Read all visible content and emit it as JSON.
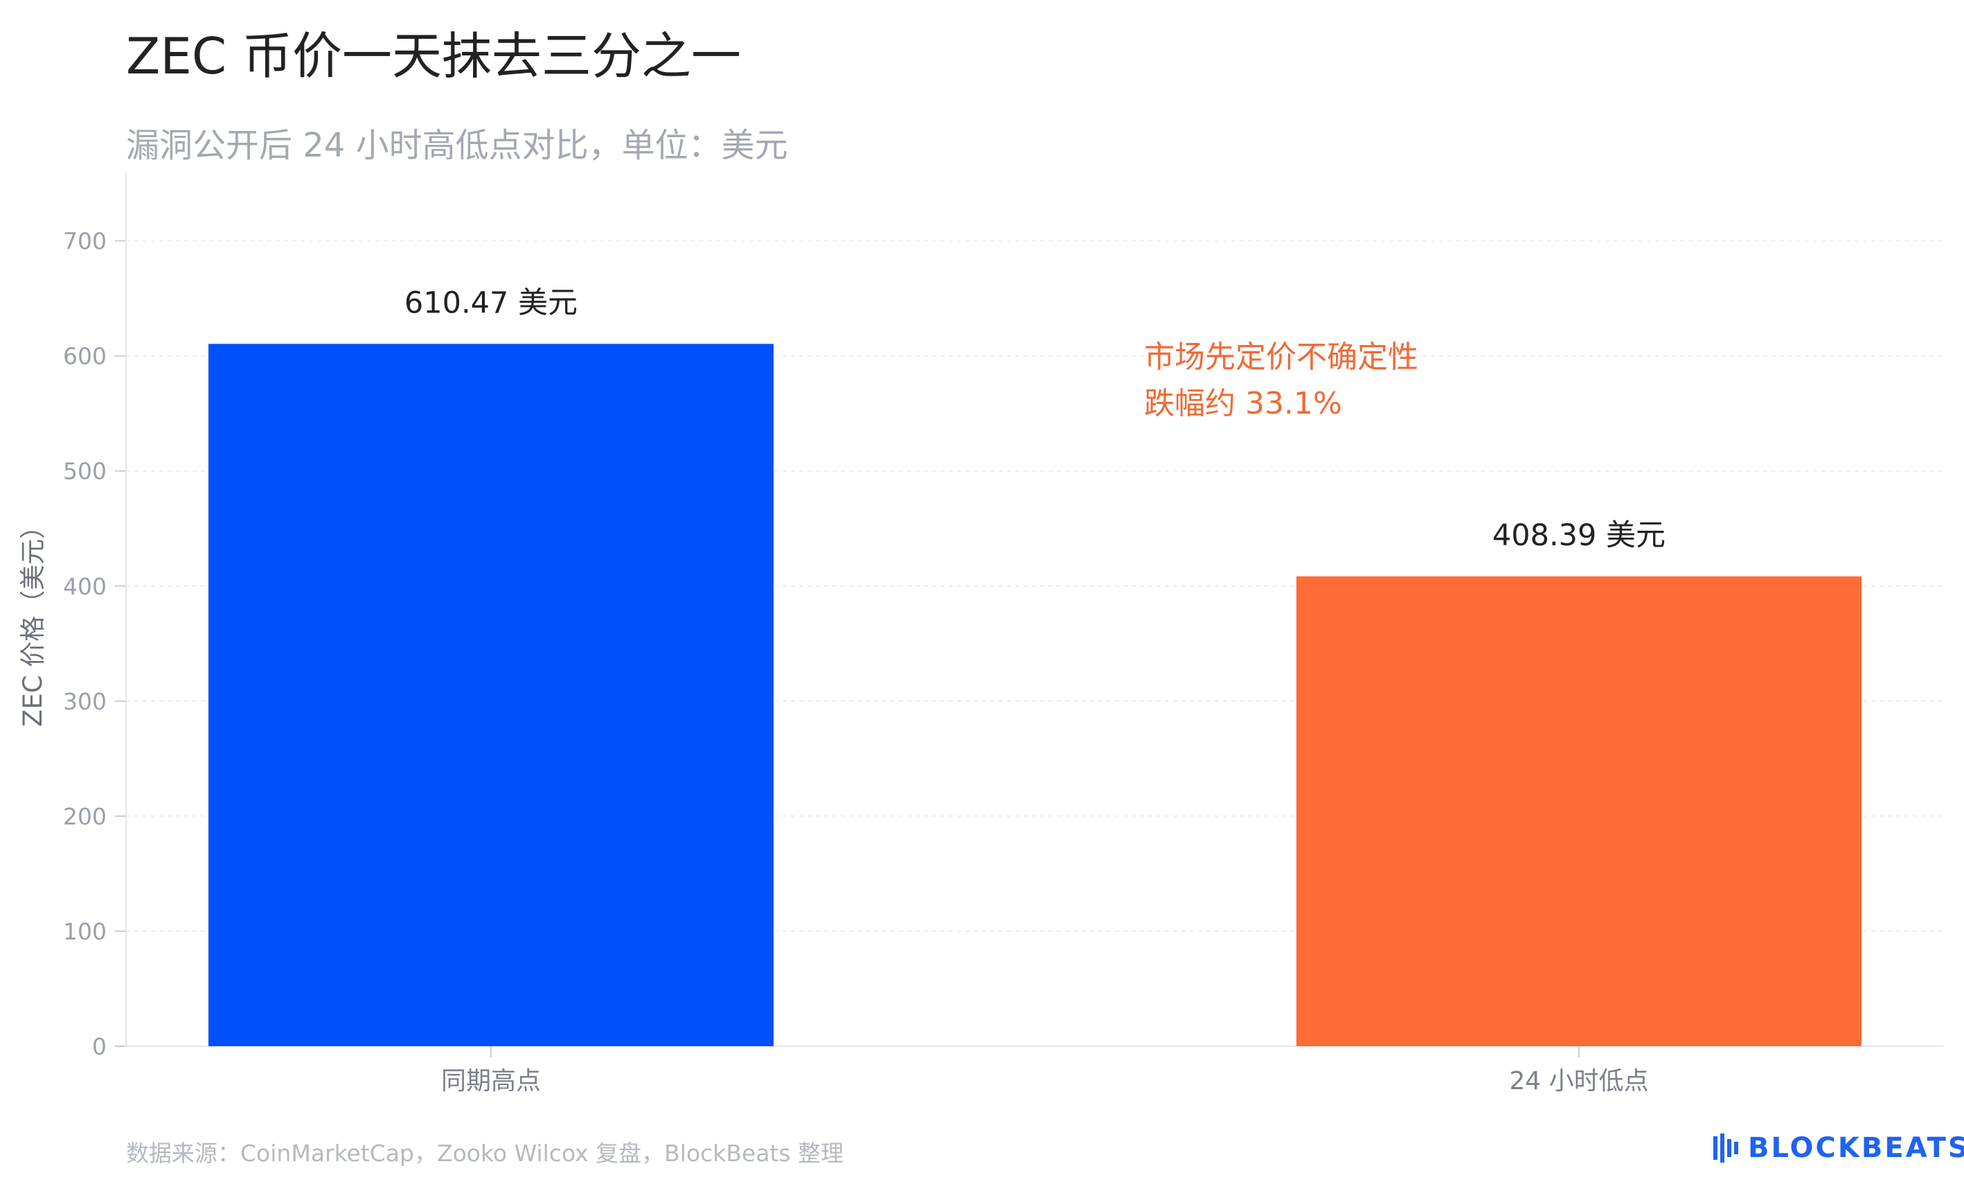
{
  "title": "ZEC 币价一天抹去三分之一",
  "subtitle": "漏洞公开后 24 小时高低点对比，单位：美元",
  "source": "数据来源：CoinMarketCap，Zooko Wilcox 复盘，BlockBeats 整理",
  "brand": {
    "name": "BLOCKBEATS",
    "color": "#1f63f0",
    "icon": "blockbeats-logo-icon"
  },
  "chart_data": {
    "type": "bar",
    "categories": [
      "同期高点",
      "24 小时低点"
    ],
    "values": [
      610.47,
      408.39
    ],
    "value_labels": [
      "610.47 美元",
      "408.39 美元"
    ],
    "colors": [
      "#0050ff",
      "#ff6b35"
    ],
    "ylabel": "ZEC 价格（美元）",
    "xlabel": "",
    "ylim": [
      0,
      760
    ],
    "yticks": [
      0,
      100,
      200,
      300,
      400,
      500,
      600,
      700
    ],
    "grid": true,
    "annotation": {
      "lines": [
        "市场先定价不确定性",
        "跌幅约 33.1%"
      ],
      "color": "#f06a35"
    }
  }
}
